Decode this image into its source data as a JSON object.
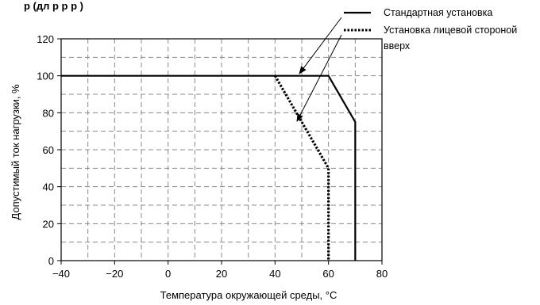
{
  "header": {
    "partial_text": "р                                (дл  р   р    р )"
  },
  "chart_data": {
    "type": "line",
    "xlabel": "Температура окружающей среды, °C",
    "ylabel": "Допустимый ток нагрузки, %",
    "xlim": [
      -40,
      80
    ],
    "ylim": [
      0,
      120
    ],
    "x_ticks": [
      -40,
      -20,
      0,
      20,
      40,
      60,
      80
    ],
    "y_ticks": [
      0,
      20,
      40,
      60,
      80,
      100,
      120
    ],
    "x_tick_labels": [
      "−40",
      "−20",
      "0",
      "20",
      "40",
      "60",
      "80"
    ],
    "y_tick_labels": [
      "0",
      "20",
      "40",
      "60",
      "80",
      "100",
      "120"
    ],
    "grid": true,
    "legend_position": "top-right",
    "series": [
      {
        "name": "Стандартная установка",
        "style": "solid",
        "color": "#000000",
        "points": [
          [
            -40,
            100
          ],
          [
            60,
            100
          ],
          [
            70,
            75
          ],
          [
            70,
            0
          ]
        ]
      },
      {
        "name": "Установка лицевой стороной вверх",
        "style": "dotted",
        "color": "#000000",
        "points": [
          [
            40,
            100
          ],
          [
            60,
            50
          ],
          [
            60,
            0
          ]
        ]
      }
    ],
    "legend": [
      {
        "label_lines": [
          "Стандартная установка"
        ],
        "style": "solid"
      },
      {
        "label_lines": [
          "Установка лицевой стороной",
          "вверх"
        ],
        "style": "dotted"
      }
    ]
  }
}
